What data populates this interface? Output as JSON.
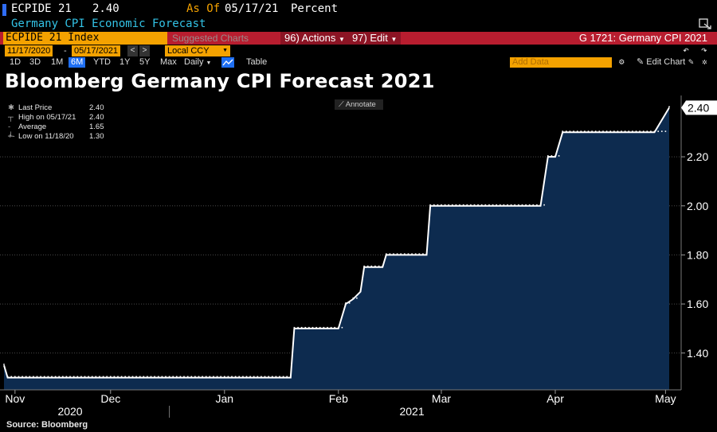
{
  "header": {
    "ticker": "ECPIDE 21",
    "last_value": "2.40",
    "as_of_label": "As Of",
    "as_of_date": "05/17/21",
    "unit": "Percent",
    "description": "Germany CPI Economic Forecast"
  },
  "toolbar": {
    "security_field": "ECPIDE 21 Index",
    "suggested_charts": "Suggested Charts",
    "actions_label": "96) Actions",
    "edit_label": "97) Edit",
    "page_title": "G 1721: Germany CPI 2021"
  },
  "range": {
    "start_date": "11/17/2020",
    "end_date": "05/17/2021",
    "currency": "Local CCY",
    "separator": "-"
  },
  "periods": [
    "1D",
    "3D",
    "1M",
    "6M",
    "YTD",
    "1Y",
    "5Y",
    "Max"
  ],
  "selected_period": "6M",
  "frequency": "Daily",
  "table_label": "Table",
  "add_data_placeholder": "Add Data",
  "edit_chart_label": "Edit Chart",
  "annotate_label": "Annotate",
  "legend": [
    {
      "label": "Last Price",
      "value": "2.40"
    },
    {
      "label": "High on 05/17/21",
      "value": "2.40"
    },
    {
      "label": "Average",
      "value": "1.65"
    },
    {
      "label": "Low on 11/18/20",
      "value": "1.30"
    }
  ],
  "source": "Source: Bloomberg",
  "colors": {
    "accent_orange": "#f4a200",
    "toolbar_red": "#b81d2f",
    "area_fill": "#0d2b4f",
    "line": "#ffffff",
    "selected_blue": "#1f6ff2"
  },
  "chart_data": {
    "type": "area",
    "title": "Bloomberg Germany CPI Forecast 2021",
    "xlabel": "",
    "ylabel": "Percent",
    "ylim": [
      1.25,
      2.45
    ],
    "y_ticks": [
      1.4,
      1.6,
      1.8,
      2.0,
      2.2
    ],
    "y_tick_labels": [
      "1.40",
      "1.60",
      "1.80",
      "2.00",
      "2.20"
    ],
    "x_range": [
      "2020-11-17",
      "2021-05-17"
    ],
    "x_month_ticks": [
      {
        "label": "Nov",
        "date": "2020-11-20"
      },
      {
        "label": "Dec",
        "date": "2020-12-16"
      },
      {
        "label": "Jan",
        "date": "2021-01-16"
      },
      {
        "label": "Feb",
        "date": "2021-02-16"
      },
      {
        "label": "Mar",
        "date": "2021-03-16"
      },
      {
        "label": "Apr",
        "date": "2021-04-16"
      },
      {
        "label": "May",
        "date": "2021-05-16"
      }
    ],
    "x_year_labels": [
      {
        "label": "2020",
        "date": "2020-12-05"
      },
      {
        "label": "2021",
        "date": "2021-03-08"
      }
    ],
    "last_value_label": "2.40",
    "series": [
      {
        "name": "ECPIDE 21 Index",
        "x": [
          "2020-11-17",
          "2020-11-18",
          "2021-02-03",
          "2021-02-04",
          "2021-02-16",
          "2021-02-18",
          "2021-02-20",
          "2021-02-22",
          "2021-02-23",
          "2021-02-28",
          "2021-03-01",
          "2021-03-12",
          "2021-03-13",
          "2021-04-12",
          "2021-04-14",
          "2021-04-16",
          "2021-04-18",
          "2021-05-13",
          "2021-05-17"
        ],
        "values": [
          1.35,
          1.3,
          1.3,
          1.5,
          1.5,
          1.6,
          1.62,
          1.65,
          1.75,
          1.75,
          1.8,
          1.8,
          2.0,
          2.0,
          2.2,
          2.2,
          2.3,
          2.3,
          2.4
        ]
      }
    ]
  }
}
